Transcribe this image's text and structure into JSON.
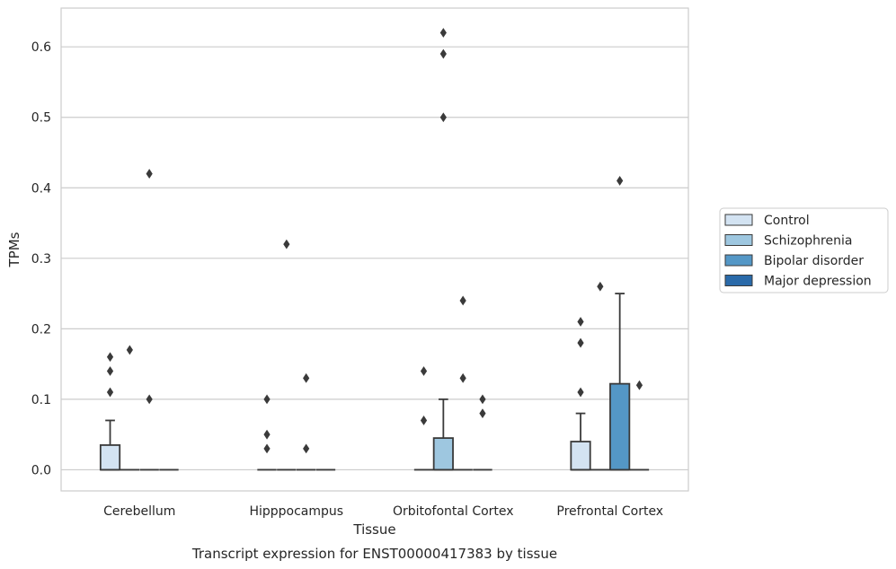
{
  "chart_data": {
    "type": "box",
    "xlabel": "Tissue",
    "ylabel": "TPMs",
    "caption": "Transcript expression for ENST00000417383 by tissue",
    "ylim": [
      -0.03,
      0.655
    ],
    "yticks": [
      "0.0",
      "0.1",
      "0.2",
      "0.3",
      "0.4",
      "0.5",
      "0.6"
    ],
    "grid": "horizontal",
    "legend_position": "right",
    "categories": [
      "Cerebellum",
      "Hipppocampus",
      "Orbitofontal Cortex",
      "Prefrontal Cortex"
    ],
    "series": [
      {
        "name": "Control",
        "color": "#d3e3f2"
      },
      {
        "name": "Schizophrenia",
        "color": "#9ec7e0"
      },
      {
        "name": "Bipolar disorder",
        "color": "#5497c6"
      },
      {
        "name": "Major depression",
        "color": "#2a6aa9"
      }
    ],
    "boxes": [
      {
        "category": "Cerebellum",
        "series": "Control",
        "q1": 0,
        "median": 0,
        "q3": 0.035,
        "whisker_low": 0,
        "whisker_high": 0.07,
        "outliers": [
          0.16,
          0.14,
          0.11
        ]
      },
      {
        "category": "Cerebellum",
        "series": "Schizophrenia",
        "q1": 0,
        "median": 0,
        "q3": 0,
        "whisker_low": 0,
        "whisker_high": 0,
        "outliers": [
          0.17
        ]
      },
      {
        "category": "Cerebellum",
        "series": "Bipolar disorder",
        "q1": 0,
        "median": 0,
        "q3": 0,
        "whisker_low": 0,
        "whisker_high": 0,
        "outliers": [
          0.42,
          0.1
        ]
      },
      {
        "category": "Cerebellum",
        "series": "Major depression",
        "q1": 0,
        "median": 0,
        "q3": 0,
        "whisker_low": 0,
        "whisker_high": 0,
        "outliers": []
      },
      {
        "category": "Hipppocampus",
        "series": "Control",
        "q1": 0,
        "median": 0,
        "q3": 0,
        "whisker_low": 0,
        "whisker_high": 0,
        "outliers": [
          0.1,
          0.05,
          0.03
        ]
      },
      {
        "category": "Hipppocampus",
        "series": "Schizophrenia",
        "q1": 0,
        "median": 0,
        "q3": 0,
        "whisker_low": 0,
        "whisker_high": 0,
        "outliers": [
          0.32
        ]
      },
      {
        "category": "Hipppocampus",
        "series": "Bipolar disorder",
        "q1": 0,
        "median": 0,
        "q3": 0,
        "whisker_low": 0,
        "whisker_high": 0,
        "outliers": [
          0.13,
          0.03
        ]
      },
      {
        "category": "Hipppocampus",
        "series": "Major depression",
        "q1": 0,
        "median": 0,
        "q3": 0,
        "whisker_low": 0,
        "whisker_high": 0,
        "outliers": []
      },
      {
        "category": "Orbitofontal Cortex",
        "series": "Control",
        "q1": 0,
        "median": 0,
        "q3": 0,
        "whisker_low": 0,
        "whisker_high": 0,
        "outliers": [
          0.14,
          0.07
        ]
      },
      {
        "category": "Orbitofontal Cortex",
        "series": "Schizophrenia",
        "q1": 0,
        "median": 0,
        "q3": 0.045,
        "whisker_low": 0,
        "whisker_high": 0.1,
        "outliers": [
          0.62,
          0.59,
          0.5
        ]
      },
      {
        "category": "Orbitofontal Cortex",
        "series": "Bipolar disorder",
        "q1": 0,
        "median": 0,
        "q3": 0,
        "whisker_low": 0,
        "whisker_high": 0,
        "outliers": [
          0.24,
          0.13
        ]
      },
      {
        "category": "Orbitofontal Cortex",
        "series": "Major depression",
        "q1": 0,
        "median": 0,
        "q3": 0,
        "whisker_low": 0,
        "whisker_high": 0,
        "outliers": [
          0.1,
          0.08
        ]
      },
      {
        "category": "Prefrontal Cortex",
        "series": "Control",
        "q1": 0,
        "median": 0,
        "q3": 0.04,
        "whisker_low": 0,
        "whisker_high": 0.08,
        "outliers": [
          0.21,
          0.18,
          0.11
        ]
      },
      {
        "category": "Prefrontal Cortex",
        "series": "Schizophrenia",
        "q1": 0,
        "median": 0,
        "q3": 0,
        "whisker_low": 0,
        "whisker_high": 0,
        "outliers": [
          0.26
        ]
      },
      {
        "category": "Prefrontal Cortex",
        "series": "Bipolar disorder",
        "q1": 0,
        "median": 0,
        "q3": 0.122,
        "whisker_low": 0,
        "whisker_high": 0.25,
        "outliers": [
          0.41
        ]
      },
      {
        "category": "Prefrontal Cortex",
        "series": "Major depression",
        "q1": 0,
        "median": 0,
        "q3": 0,
        "whisker_low": 0,
        "whisker_high": 0,
        "outliers": [
          0.12
        ]
      }
    ]
  }
}
